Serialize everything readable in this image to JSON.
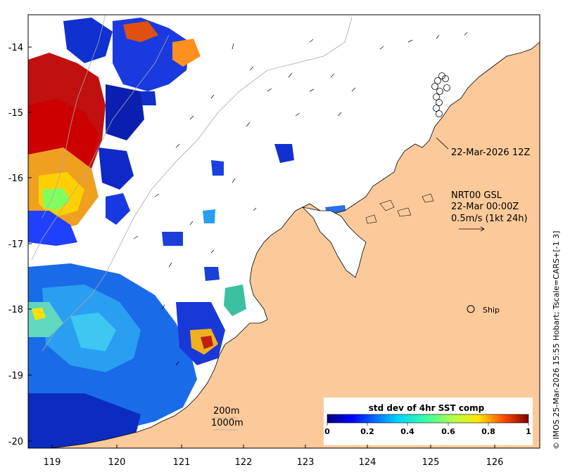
{
  "map": {
    "lon_ticks": [
      "119",
      "120",
      "121",
      "122",
      "123",
      "124",
      "125",
      "126"
    ],
    "lat_ticks": [
      "-14",
      "-15",
      "-16",
      "-17",
      "-18",
      "-19",
      "-20"
    ],
    "colors": {
      "land": "#fcc99a",
      "ocean": "#ffffff",
      "coast": "#000000",
      "bathy": "#a8a8a8",
      "ship_marker": "#000000"
    }
  },
  "annotations": {
    "track_date": "22-Mar-2026 12Z",
    "product_line1": "NRT00 GSL",
    "product_line2": "22-Mar 00:00Z",
    "product_line3": "0.5m/s (1kt 24h)",
    "ship_label": "Ship",
    "isobath_200": "200m",
    "isobath_1000": "1000m",
    "credit": "© IMOS 25-Mar-2026 15:55 Hobart; Tscale=CARS+[-1 3]"
  },
  "colorbar": {
    "title": "std dev of 4hr SST comp",
    "ticks": [
      "0",
      "0.2",
      "0.4",
      "0.6",
      "0.8",
      "1"
    ],
    "colormap": "jet"
  }
}
